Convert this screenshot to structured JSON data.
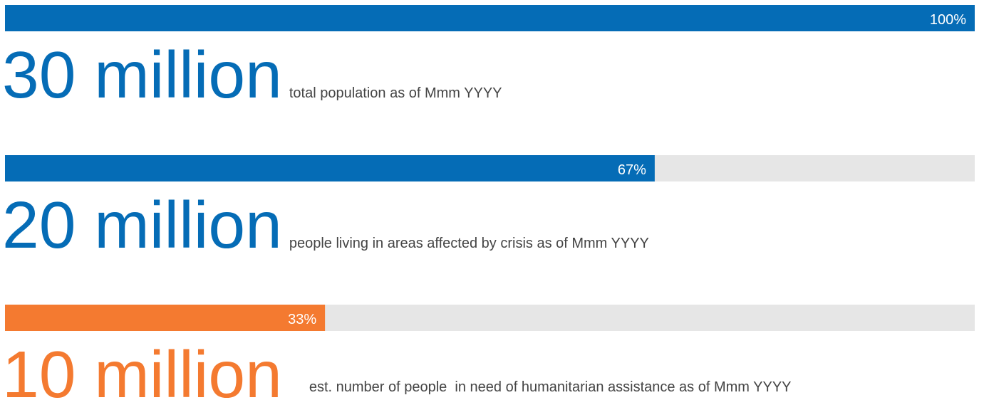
{
  "xlim": [
    0,
    100
  ],
  "items": [
    {
      "value": 100,
      "value_label": "100%",
      "figure": "30 million",
      "description": "total population as of Mmm YYYY",
      "color": "#056cb6"
    },
    {
      "value": 67,
      "value_label": "67%",
      "figure": "20 million",
      "description": "people living in areas affected by crisis as of Mmm YYYY",
      "color": "#056cb6"
    },
    {
      "value": 33,
      "value_label": "33%",
      "figure": "10 million",
      "description": "est. number of people  in need of humanitarian assistance as of Mmm YYYY",
      "color": "#f47a30"
    }
  ]
}
